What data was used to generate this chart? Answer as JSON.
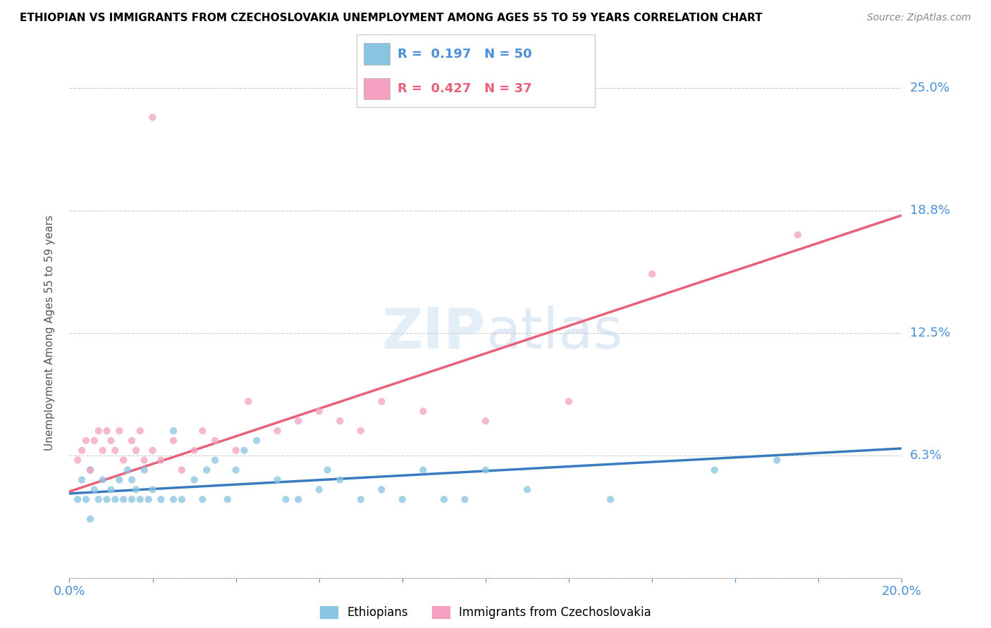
{
  "title": "ETHIOPIAN VS IMMIGRANTS FROM CZECHOSLOVAKIA UNEMPLOYMENT AMONG AGES 55 TO 59 YEARS CORRELATION CHART",
  "source": "Source: ZipAtlas.com",
  "ylabel": "Unemployment Among Ages 55 to 59 years",
  "xlim": [
    0.0,
    0.2
  ],
  "ylim": [
    0.0,
    0.25
  ],
  "yticks": [
    0.0,
    0.0625,
    0.125,
    0.1875,
    0.25
  ],
  "ytick_labels": [
    "",
    "6.3%",
    "12.5%",
    "18.8%",
    "25.0%"
  ],
  "blue_color": "#89c4e1",
  "pink_color": "#f4a0c0",
  "blue_line_color": "#3a7abf",
  "pink_line_color": "#e8607a",
  "watermark_text": "ZIPatlas",
  "blue_R": 0.197,
  "blue_N": 50,
  "pink_R": 0.427,
  "pink_N": 37,
  "blue_scatter_x": [
    0.002,
    0.003,
    0.004,
    0.005,
    0.005,
    0.006,
    0.007,
    0.008,
    0.009,
    0.01,
    0.011,
    0.012,
    0.013,
    0.014,
    0.015,
    0.015,
    0.016,
    0.017,
    0.018,
    0.019,
    0.02,
    0.022,
    0.025,
    0.025,
    0.027,
    0.03,
    0.032,
    0.033,
    0.035,
    0.038,
    0.04,
    0.042,
    0.045,
    0.05,
    0.052,
    0.055,
    0.06,
    0.062,
    0.065,
    0.07,
    0.075,
    0.08,
    0.085,
    0.09,
    0.095,
    0.1,
    0.11,
    0.13,
    0.155,
    0.17
  ],
  "blue_scatter_y": [
    0.04,
    0.05,
    0.04,
    0.055,
    0.03,
    0.045,
    0.04,
    0.05,
    0.04,
    0.045,
    0.04,
    0.05,
    0.04,
    0.055,
    0.04,
    0.05,
    0.045,
    0.04,
    0.055,
    0.04,
    0.045,
    0.04,
    0.075,
    0.04,
    0.04,
    0.05,
    0.04,
    0.055,
    0.06,
    0.04,
    0.055,
    0.065,
    0.07,
    0.05,
    0.04,
    0.04,
    0.045,
    0.055,
    0.05,
    0.04,
    0.045,
    0.04,
    0.055,
    0.04,
    0.04,
    0.055,
    0.045,
    0.04,
    0.055,
    0.06
  ],
  "pink_scatter_x": [
    0.002,
    0.003,
    0.004,
    0.005,
    0.006,
    0.007,
    0.008,
    0.009,
    0.01,
    0.011,
    0.012,
    0.013,
    0.015,
    0.016,
    0.017,
    0.018,
    0.02,
    0.022,
    0.025,
    0.027,
    0.03,
    0.032,
    0.035,
    0.04,
    0.043,
    0.05,
    0.055,
    0.06,
    0.065,
    0.07,
    0.075,
    0.085,
    0.1,
    0.12,
    0.14,
    0.175,
    0.02
  ],
  "pink_scatter_y": [
    0.06,
    0.065,
    0.07,
    0.055,
    0.07,
    0.075,
    0.065,
    0.075,
    0.07,
    0.065,
    0.075,
    0.06,
    0.07,
    0.065,
    0.075,
    0.06,
    0.065,
    0.06,
    0.07,
    0.055,
    0.065,
    0.075,
    0.07,
    0.065,
    0.09,
    0.075,
    0.08,
    0.085,
    0.08,
    0.075,
    0.09,
    0.085,
    0.08,
    0.09,
    0.155,
    0.175,
    0.235
  ]
}
